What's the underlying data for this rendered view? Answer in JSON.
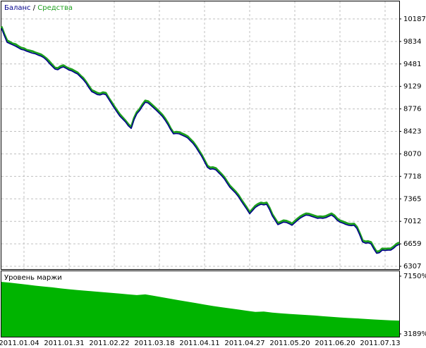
{
  "chart_data": [
    {
      "type": "line",
      "legend_separator": " / ",
      "series": [
        {
          "name": "Баланс",
          "color": "#00008b",
          "values": [
            10042,
            9930,
            9821,
            9800,
            9780,
            9760,
            9735,
            9710,
            9700,
            9680,
            9665,
            9650,
            9640,
            9620,
            9605,
            9580,
            9540,
            9490,
            9445,
            9400,
            9390,
            9420,
            9434,
            9410,
            9385,
            9370,
            9345,
            9324,
            9280,
            9235,
            9180,
            9110,
            9048,
            9025,
            9000,
            8995,
            9010,
            9000,
            8930,
            8860,
            8790,
            8725,
            8661,
            8615,
            8570,
            8510,
            8470,
            8606,
            8700,
            8750,
            8820,
            8880,
            8870,
            8830,
            8790,
            8750,
            8705,
            8661,
            8600,
            8530,
            8450,
            8385,
            8390,
            8385,
            8365,
            8345,
            8320,
            8275,
            8230,
            8170,
            8100,
            8030,
            7945,
            7860,
            7830,
            7835,
            7820,
            7775,
            7730,
            7680,
            7610,
            7545,
            7500,
            7455,
            7400,
            7330,
            7265,
            7200,
            7130,
            7180,
            7230,
            7260,
            7280,
            7270,
            7280,
            7200,
            7100,
            7030,
            6960,
            6980,
            7000,
            6995,
            6975,
            6950,
            6990,
            7030,
            7065,
            7090,
            7110,
            7105,
            7090,
            7075,
            7060,
            7065,
            7060,
            7070,
            7090,
            7110,
            7080,
            7030,
            7000,
            6985,
            6965,
            6950,
            6945,
            6950,
            6900,
            6800,
            6690,
            6670,
            6675,
            6660,
            6580,
            6510,
            6520,
            6560,
            6555,
            6560,
            6560,
            6590,
            6630,
            6650
          ]
        },
        {
          "name": "Средства",
          "color": "#1ea01e",
          "values": [
            10070,
            9950,
            9850,
            9825,
            9800,
            9790,
            9760,
            9735,
            9725,
            9700,
            9690,
            9680,
            9660,
            9645,
            9630,
            9600,
            9565,
            9520,
            9470,
            9420,
            9415,
            9445,
            9460,
            9430,
            9410,
            9395,
            9370,
            9345,
            9300,
            9260,
            9200,
            9135,
            9070,
            9050,
            9025,
            9015,
            9035,
            9025,
            8950,
            8885,
            8815,
            8750,
            8690,
            8640,
            8590,
            8535,
            8490,
            8630,
            8725,
            8775,
            8845,
            8905,
            8895,
            8855,
            8815,
            8775,
            8730,
            8685,
            8625,
            8555,
            8470,
            8405,
            8415,
            8410,
            8390,
            8370,
            8345,
            8300,
            8255,
            8195,
            8125,
            8055,
            7970,
            7885,
            7855,
            7860,
            7845,
            7800,
            7755,
            7705,
            7635,
            7570,
            7525,
            7480,
            7425,
            7355,
            7290,
            7225,
            7150,
            7205,
            7255,
            7285,
            7305,
            7295,
            7305,
            7225,
            7125,
            7055,
            6985,
            7005,
            7025,
            7020,
            7000,
            6975,
            7015,
            7055,
            7090,
            7115,
            7135,
            7130,
            7115,
            7100,
            7085,
            7090,
            7085,
            7095,
            7115,
            7135,
            7105,
            7055,
            7025,
            7010,
            6990,
            6975,
            6970,
            6975,
            6925,
            6825,
            6715,
            6695,
            6700,
            6685,
            6605,
            6535,
            6545,
            6585,
            6580,
            6585,
            6585,
            6615,
            6655,
            6680
          ]
        }
      ],
      "xlim": [
        0,
        141
      ],
      "xticks": [
        {
          "value": 8,
          "label": "2011.01.04"
        },
        {
          "value": 24,
          "label": "2011.01.31"
        },
        {
          "value": 40,
          "label": "2011.02.22"
        },
        {
          "value": 56,
          "label": "2011.03.18"
        },
        {
          "value": 72,
          "label": "2011.04.11"
        },
        {
          "value": 88,
          "label": "2011.04.27"
        },
        {
          "value": 104,
          "label": "2011.05.20"
        },
        {
          "value": 120,
          "label": "2011.06.20"
        },
        {
          "value": 136,
          "label": "2011.07.13"
        }
      ],
      "ylim": [
        6263,
        10462
      ],
      "yticks": [
        10187,
        9834,
        9481,
        9129,
        8776,
        8423,
        8070,
        7718,
        7365,
        7012,
        6659,
        6307
      ],
      "grid": true
    },
    {
      "type": "area",
      "title": "Уровень маржи",
      "color": "#00b400",
      "values": [
        6760,
        6700,
        6640,
        6570,
        6500,
        6440,
        6380,
        6310,
        6250,
        6200,
        6150,
        6100,
        6050,
        6000,
        5950,
        5900,
        5850,
        5900,
        5800,
        5700,
        5600,
        5500,
        5400,
        5300,
        5200,
        5100,
        5020,
        4940,
        4860,
        4780,
        4700,
        4720,
        4650,
        4600,
        4560,
        4520,
        4490,
        4450,
        4400,
        4360,
        4320,
        4280,
        4250,
        4220,
        4180,
        4150,
        4120,
        4100
      ],
      "xlim": [
        0,
        47
      ],
      "ylim": [
        2996,
        7488
      ],
      "yticks": [
        {
          "value": 7150,
          "label": "7150%"
        },
        {
          "value": 3189,
          "label": "3189%"
        }
      ]
    }
  ]
}
